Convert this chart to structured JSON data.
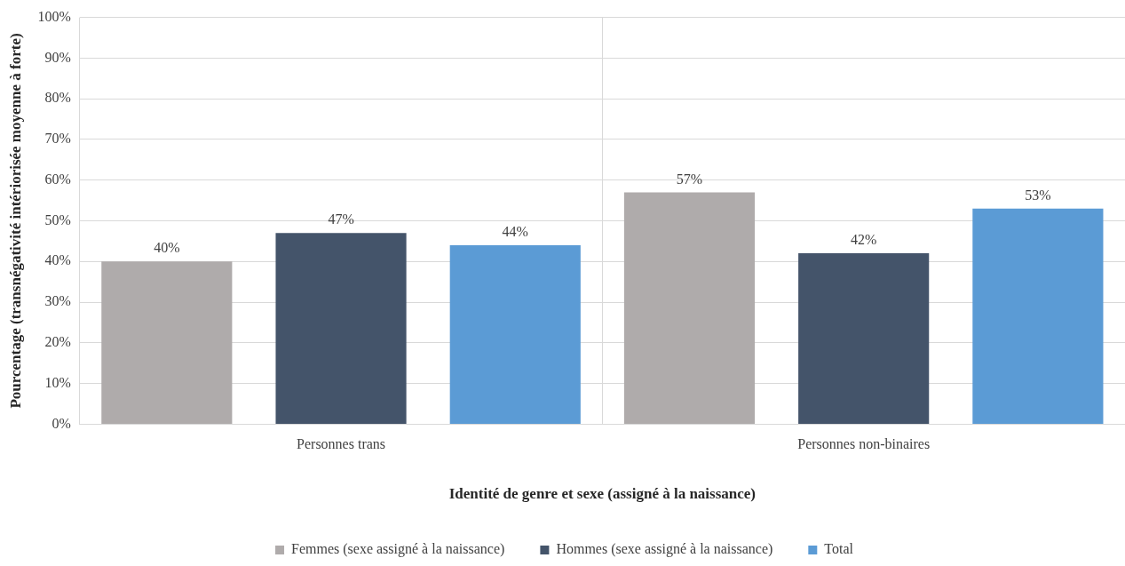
{
  "chart_data": {
    "type": "bar",
    "xlabel": "Identité de genre et sexe (assigné à la naissance)",
    "ylabel": "Pourcentage (transnégativité intériorisée moyenne à forte)",
    "categories": [
      "Personnes trans",
      "Personnes non-binaires"
    ],
    "series": [
      {
        "name": "Femmes (sexe assigné à la naissance)",
        "color": "#afabab",
        "values": [
          40,
          57
        ],
        "value_labels": [
          "40%",
          "57%"
        ]
      },
      {
        "name": "Hommes (sexe assigné à la naissance)",
        "color": "#44546a",
        "values": [
          47,
          42
        ],
        "value_labels": [
          "47%",
          "42%"
        ]
      },
      {
        "name": "Total",
        "color": "#5b9bd5",
        "values": [
          44,
          53
        ],
        "value_labels": [
          "44%",
          "53%"
        ]
      }
    ],
    "ylim": [
      0,
      100
    ],
    "yticks": [
      {
        "value": 0,
        "label": "0%"
      },
      {
        "value": 10,
        "label": "10%"
      },
      {
        "value": 20,
        "label": "20%"
      },
      {
        "value": 30,
        "label": "30%"
      },
      {
        "value": 40,
        "label": "40%"
      },
      {
        "value": 50,
        "label": "50%"
      },
      {
        "value": 60,
        "label": "60%"
      },
      {
        "value": 70,
        "label": "70%"
      },
      {
        "value": 80,
        "label": "80%"
      },
      {
        "value": 90,
        "label": "90%"
      },
      {
        "value": 100,
        "label": "100%"
      }
    ],
    "grid": true,
    "legend": "bottom"
  }
}
